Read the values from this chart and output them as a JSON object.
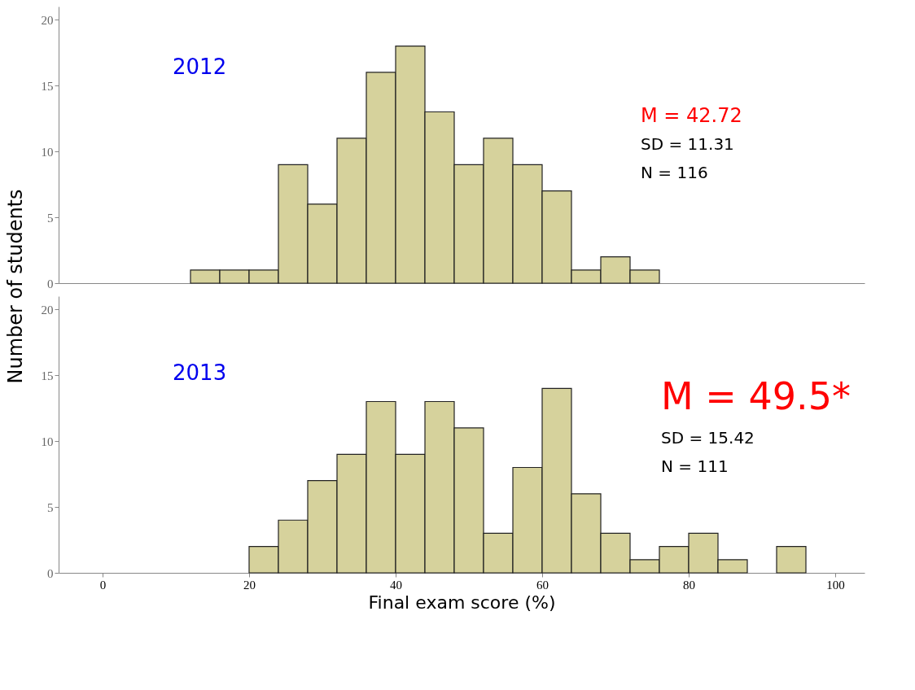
{
  "chart_data": [
    {
      "type": "histogram",
      "ylabel": "Number of students",
      "color": "#d6d29c",
      "bins": [
        12,
        16,
        20,
        24,
        28,
        32,
        36,
        40,
        44,
        48,
        52,
        56,
        60,
        64,
        68,
        72,
        76
      ],
      "values": [
        1,
        1,
        1,
        9,
        6,
        11,
        16,
        18,
        13,
        9,
        11,
        9,
        7,
        1,
        2,
        1
      ],
      "xlim": [
        -6,
        104
      ],
      "ylim": [
        0,
        21
      ],
      "yticks": [
        0,
        5,
        10,
        15,
        20
      ],
      "tick_labels": "y",
      "grid": false,
      "annotations": [
        "2012",
        "M = 42.72",
        "SD = 11.31",
        "N = 116"
      ]
    },
    {
      "type": "histogram",
      "xlabel": "Final exam score (%)",
      "color": "#d6d29c",
      "bins": [
        20,
        24,
        28,
        32,
        36,
        40,
        44,
        48,
        52,
        56,
        60,
        64,
        68,
        72,
        76,
        80,
        84,
        88,
        92,
        96
      ],
      "values": [
        2,
        4,
        7,
        9,
        13,
        9,
        13,
        11,
        3,
        8,
        14,
        6,
        3,
        1,
        2,
        3,
        1,
        0,
        2
      ],
      "xlim": [
        -6,
        104
      ],
      "xticks": [
        0,
        20,
        40,
        60,
        80,
        100
      ],
      "ylim": [
        0,
        21
      ],
      "yticks": [
        0,
        5,
        10,
        15,
        20
      ],
      "grid": false,
      "annotations": [
        "2013",
        "M = 49.5*",
        "SD = 15.42",
        "N = 111"
      ]
    }
  ]
}
